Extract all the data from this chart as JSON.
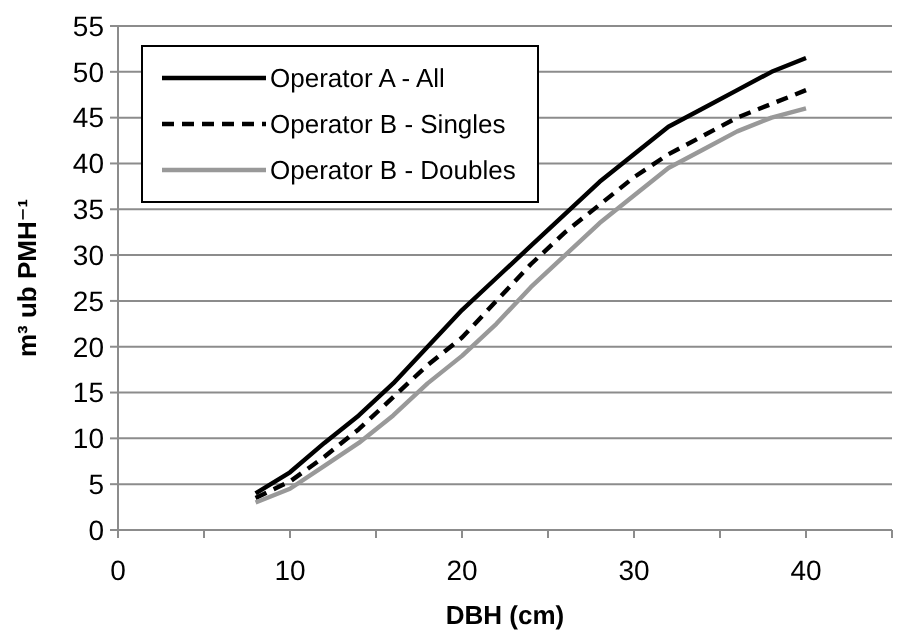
{
  "chart_data": {
    "type": "line",
    "xlabel": "DBH (cm)",
    "ylabel": "m³ ub PMH⁻¹",
    "x": [
      8,
      10,
      12,
      14,
      16,
      18,
      20,
      22,
      24,
      26,
      28,
      30,
      32,
      34,
      36,
      38,
      40
    ],
    "series": [
      {
        "name": "Operator A - All",
        "color": "#000000",
        "line_style": "solid",
        "values": [
          4,
          6.3,
          9.5,
          12.5,
          16,
          20,
          24,
          27.5,
          31,
          34.5,
          38,
          41,
          44,
          46,
          48,
          50,
          51.5
        ]
      },
      {
        "name": "Operator B - Singles",
        "color": "#000000",
        "line_style": "dashed",
        "values": [
          3.5,
          5.3,
          8,
          11,
          14.5,
          18,
          21,
          25,
          29,
          32.5,
          35.5,
          38.5,
          41,
          43,
          45,
          46.5,
          48
        ]
      },
      {
        "name": "Operator B - Doubles",
        "color": "#999999",
        "line_style": "solid",
        "values": [
          3,
          4.5,
          7,
          9.5,
          12.5,
          16,
          19,
          22.5,
          26.5,
          30,
          33.5,
          36.5,
          39.5,
          41.5,
          43.5,
          45,
          46
        ]
      }
    ],
    "xlim": [
      0,
      45
    ],
    "xticks": [
      0,
      {
        "value": 5,
        "label": null
      },
      10,
      {
        "value": 15,
        "label": null
      },
      20,
      {
        "value": 25,
        "label": null
      },
      30,
      {
        "value": 35,
        "label": null
      },
      40,
      {
        "value": 45,
        "label": null
      }
    ],
    "ylim": [
      0,
      55
    ],
    "yticks": [
      0,
      5,
      10,
      15,
      20,
      25,
      30,
      35,
      40,
      45,
      50,
      55
    ],
    "grid": "y",
    "legend": "top left"
  }
}
